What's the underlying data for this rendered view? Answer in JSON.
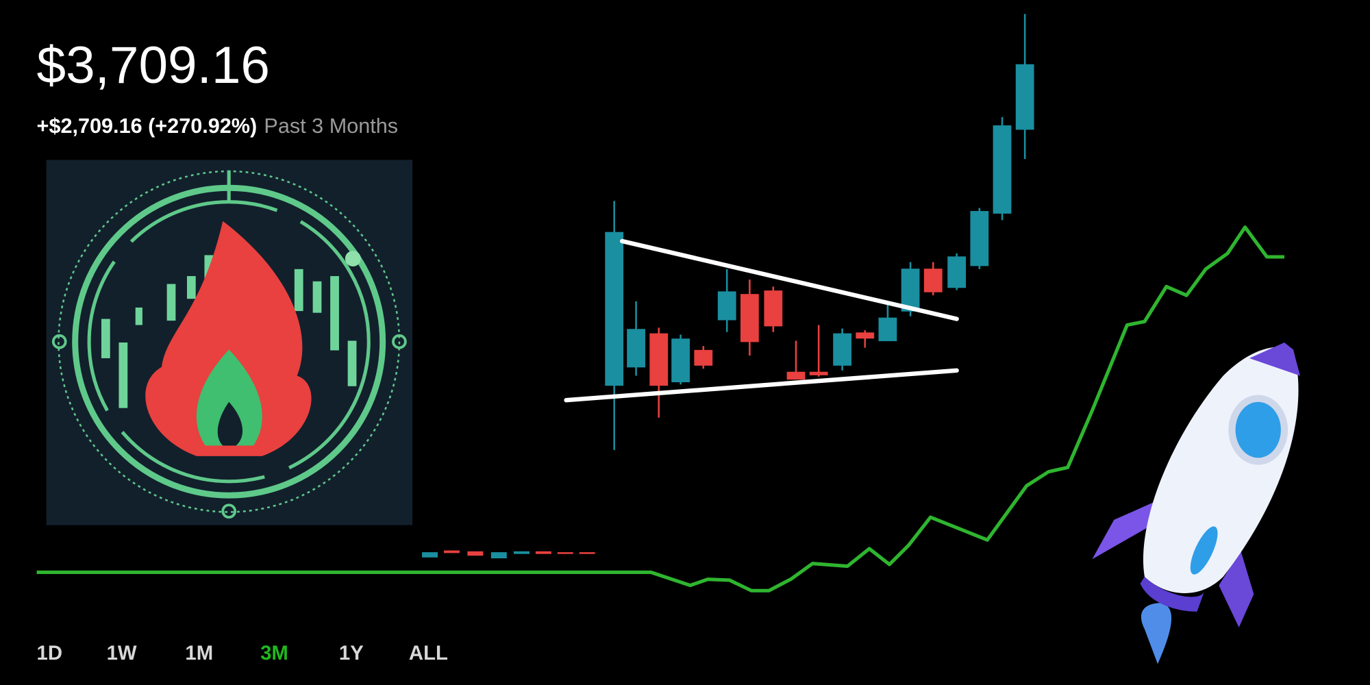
{
  "header": {
    "price": "$3,709.16",
    "change": "+$2,709.16 (+270.92%)",
    "period": "Past 3 Months"
  },
  "ranges": [
    "1D",
    "1W",
    "1M",
    "3M",
    "1Y",
    "ALL"
  ],
  "selected_range": 3
}
